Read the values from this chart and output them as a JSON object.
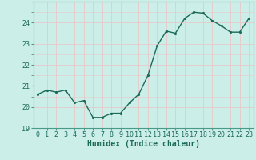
{
  "title": "",
  "xlabel": "Humidex (Indice chaleur)",
  "ylabel": "",
  "background_color": "#cceee8",
  "grid_color": "#e8c8c8",
  "line_color": "#1a6a5a",
  "marker_color": "#1a6a5a",
  "x_values": [
    0,
    1,
    2,
    3,
    4,
    5,
    6,
    7,
    8,
    9,
    10,
    11,
    12,
    13,
    14,
    15,
    16,
    17,
    18,
    19,
    20,
    21,
    22,
    23
  ],
  "y_values": [
    20.6,
    20.8,
    20.7,
    20.8,
    20.2,
    20.3,
    19.5,
    19.5,
    19.7,
    19.7,
    20.2,
    20.6,
    21.5,
    22.9,
    23.6,
    23.5,
    24.2,
    24.5,
    24.45,
    24.1,
    23.85,
    23.55,
    23.55,
    24.2
  ],
  "ylim": [
    19,
    25
  ],
  "xlim": [
    -0.5,
    23.5
  ],
  "yticks": [
    19,
    20,
    21,
    22,
    23,
    24
  ],
  "xticks": [
    0,
    1,
    2,
    3,
    4,
    5,
    6,
    7,
    8,
    9,
    10,
    11,
    12,
    13,
    14,
    15,
    16,
    17,
    18,
    19,
    20,
    21,
    22,
    23
  ],
  "tick_fontsize": 6,
  "xlabel_fontsize": 7,
  "line_width": 1.0,
  "marker_size": 2.5
}
